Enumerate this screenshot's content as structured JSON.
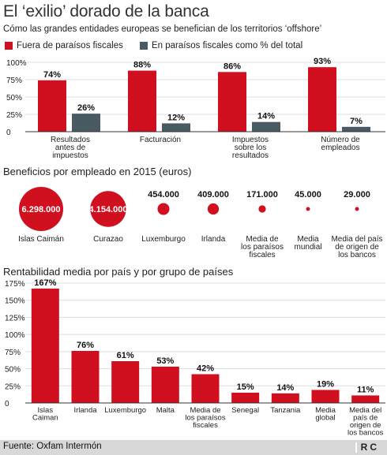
{
  "title": "El ‘exilio’ dorado de la banca",
  "subtitle": "Cómo las grandes entidades europeas se benefician de los territorios ‘offshore’",
  "colors": {
    "red": "#d0101e",
    "gray": "#4a5a63",
    "axis": "#333333",
    "grid": "#dddddd"
  },
  "legend": {
    "red_label": "Fuera  de paraísos fiscales",
    "gray_label": "En paraísos fiscales como % del total"
  },
  "chart_data": [
    {
      "type": "bar",
      "categories": [
        [
          "Resultados",
          "antes de",
          "impuestos"
        ],
        [
          "Facturación"
        ],
        [
          "Impuestos",
          "sobre los",
          "resultados"
        ],
        [
          "Número de",
          "empleados"
        ]
      ],
      "series": [
        {
          "name": "Fuera  de paraísos fiscales",
          "values": [
            74,
            88,
            86,
            93
          ],
          "labels": [
            "74%",
            "88%",
            "86%",
            "93%"
          ]
        },
        {
          "name": "En paraísos fiscales como % del total",
          "values": [
            26,
            12,
            14,
            7
          ],
          "labels": [
            "26%",
            "12%",
            "14%",
            "7%"
          ]
        }
      ],
      "ylim": [
        0,
        100
      ],
      "yticks": [
        0,
        25,
        50,
        75,
        100
      ],
      "ytick_labels": [
        "0",
        "25%",
        "50%",
        "75%",
        "100%"
      ],
      "grid": true
    },
    {
      "type": "bubble",
      "title": "Beneficios por empleado en 2015 (euros)",
      "categories": [
        [
          "Islas Caimán"
        ],
        [
          "Curazao"
        ],
        [
          "Luxemburgo"
        ],
        [
          "Irlanda"
        ],
        [
          "Media de",
          "los paraísos",
          "fiscales"
        ],
        [
          "Media",
          "mundial"
        ],
        [
          "Media del país",
          "de origen de",
          "los bancos"
        ]
      ],
      "values": [
        6298000,
        4154000,
        454000,
        409000,
        171000,
        45000,
        29000
      ],
      "labels": [
        "6.298.000",
        "4.154.000",
        "454.000",
        "409.000",
        "171.000",
        "45.000",
        "29.000"
      ]
    },
    {
      "type": "bar",
      "title": "Rentabilidad media por país y por grupo de países",
      "categories": [
        [
          "Islas",
          "Caiman"
        ],
        [
          "Irlanda"
        ],
        [
          "Luxemburgo"
        ],
        [
          "Malta"
        ],
        [
          "Media de",
          "los paraísos",
          "fiscales"
        ],
        [
          "Senegal"
        ],
        [
          "Tanzania"
        ],
        [
          "Media",
          "global"
        ],
        [
          "Media del",
          "país de",
          "origen de",
          "los bancos"
        ]
      ],
      "values": [
        167,
        76,
        61,
        53,
        42,
        15,
        14,
        19,
        11
      ],
      "labels": [
        "167%",
        "76%",
        "61%",
        "53%",
        "42%",
        "15%",
        "14%",
        "19%",
        "11%"
      ],
      "ylim": [
        0,
        175
      ],
      "yticks": [
        0,
        25,
        50,
        75,
        100,
        125,
        150,
        175
      ],
      "ytick_labels": [
        "0",
        "25%",
        "50%",
        "75%",
        "100%",
        "125%",
        "150%",
        "175%"
      ],
      "grid": true
    }
  ],
  "footer": {
    "source": "Fuente: Oxfam Intermón",
    "logo": "RC"
  }
}
